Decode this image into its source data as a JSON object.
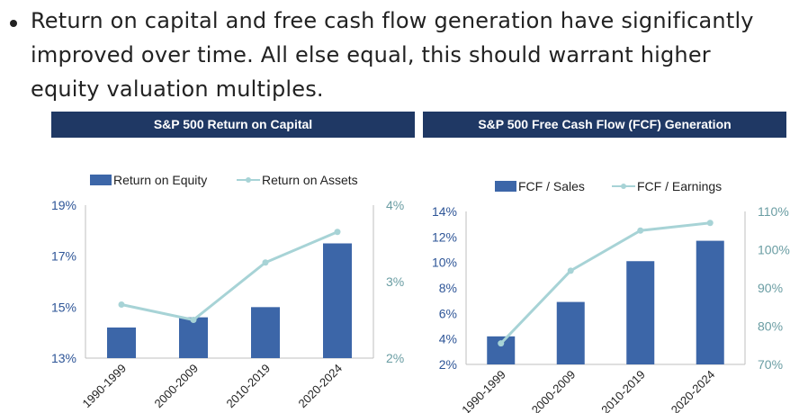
{
  "bullet": {
    "text": "Return on capital and free cash flow generation have significantly improved over time. All else equal, this should warrant higher equity valuation multiples."
  },
  "colors": {
    "bar": "#3c66a8",
    "line": "#a7d3d6",
    "header_bg": "#1f3864",
    "left_axis_text": "#2e5597",
    "right_axis_text": "#6a9da3"
  },
  "chart_data": [
    {
      "type": "bar",
      "title": "S&P 500 Return on Capital",
      "categories": [
        "1990-1999",
        "2000-2009",
        "2010-2019",
        "2020-2024"
      ],
      "series": [
        {
          "name": "Return on Equity",
          "kind": "bar",
          "axis": "left",
          "values": [
            14.2,
            14.6,
            15.0,
            17.5
          ]
        },
        {
          "name": "Return on Assets",
          "kind": "line",
          "axis": "right",
          "values": [
            2.7,
            2.5,
            3.25,
            3.65
          ]
        }
      ],
      "left_axis": {
        "min": 13,
        "max": 19,
        "ticks": [
          13,
          15,
          17,
          19
        ],
        "labels": [
          "13%",
          "15%",
          "17%",
          "19%"
        ]
      },
      "right_axis": {
        "min": 2,
        "max": 4,
        "ticks": [
          2,
          3,
          4
        ],
        "labels": [
          "2%",
          "3%",
          "4%"
        ]
      },
      "legend": "top"
    },
    {
      "type": "bar",
      "title": "S&P 500 Free Cash Flow (FCF) Generation",
      "categories": [
        "1990-1999",
        "2000-2009",
        "2010-2019",
        "2020-2024"
      ],
      "series": [
        {
          "name": "FCF / Sales",
          "kind": "bar",
          "axis": "left",
          "values": [
            4.2,
            6.9,
            10.1,
            11.7
          ]
        },
        {
          "name": "FCF / Earnings",
          "kind": "line",
          "axis": "right",
          "values": [
            75.5,
            94.5,
            105.0,
            107.0
          ]
        }
      ],
      "left_axis": {
        "min": 2,
        "max": 14,
        "ticks": [
          2,
          4,
          6,
          8,
          10,
          12,
          14
        ],
        "labels": [
          "2%",
          "4%",
          "6%",
          "8%",
          "10%",
          "12%",
          "14%"
        ]
      },
      "right_axis": {
        "min": 70,
        "max": 110,
        "ticks": [
          70,
          80,
          90,
          100,
          110
        ],
        "labels": [
          "70%",
          "80%",
          "90%",
          "100%",
          "110%"
        ]
      },
      "legend": "top"
    }
  ]
}
